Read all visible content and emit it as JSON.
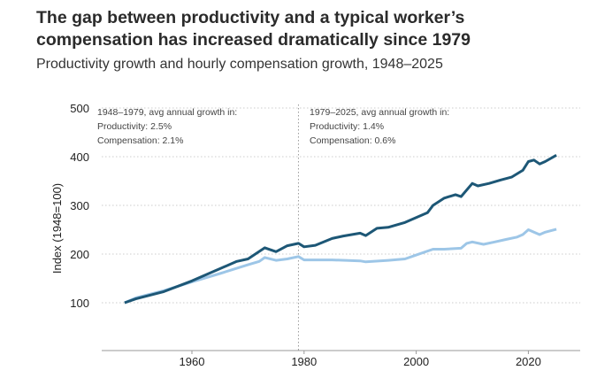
{
  "title": "The gap between productivity and a typical worker’s compensation has increased dramatically since 1979",
  "subtitle": "Productivity growth and hourly compensation growth, 1948–2025",
  "chart_data": {
    "type": "line",
    "title": "The gap between productivity and a typical worker’s compensation has increased dramatically since 1979",
    "subtitle": "Productivity growth and hourly compensation growth, 1948–2025",
    "xlabel": "",
    "ylabel": "Index (1948=100)",
    "xlim": [
      1944,
      2029
    ],
    "ylim": [
      0,
      500
    ],
    "xticks": [
      1960,
      1980,
      2000,
      2020
    ],
    "yticks": [
      100,
      200,
      300,
      400,
      500
    ],
    "grid": "horizontal dotted",
    "colors": {
      "productivity": "#1d5776",
      "compensation": "#9dc6e7"
    },
    "vline": 1979,
    "annotations": [
      {
        "lines": [
          "1948–1979, avg annual growth in:",
          "Productivity: 2.5%",
          "Compensation: 2.1%"
        ]
      },
      {
        "lines": [
          "1979–2025, avg annual growth in:",
          "Productivity: 1.4%",
          "Compensation: 0.6%"
        ]
      }
    ],
    "series": [
      {
        "key": "productivity",
        "x": [
          1948,
          1950,
          1955,
          1960,
          1965,
          1968,
          1970,
          1973,
          1975,
          1977,
          1979,
          1980,
          1982,
          1985,
          1987,
          1990,
          1991,
          1993,
          1995,
          1998,
          2000,
          2002,
          2003,
          2005,
          2007,
          2008,
          2010,
          2011,
          2013,
          2015,
          2017,
          2019,
          2020,
          2021,
          2022,
          2023,
          2025
        ],
        "y": [
          100,
          108,
          123,
          145,
          170,
          185,
          190,
          213,
          205,
          217,
          222,
          215,
          218,
          232,
          237,
          243,
          238,
          253,
          255,
          265,
          275,
          285,
          300,
          315,
          322,
          318,
          345,
          340,
          345,
          352,
          358,
          372,
          390,
          393,
          385,
          390,
          403
        ]
      },
      {
        "key": "compensation",
        "x": [
          1948,
          1950,
          1955,
          1960,
          1965,
          1970,
          1972,
          1973,
          1975,
          1977,
          1979,
          1980,
          1985,
          1990,
          1991,
          1995,
          1998,
          2000,
          2003,
          2005,
          2008,
          2009,
          2010,
          2012,
          2014,
          2016,
          2018,
          2019,
          2020,
          2021,
          2022,
          2023,
          2025
        ],
        "y": [
          100,
          110,
          125,
          143,
          160,
          178,
          185,
          193,
          187,
          190,
          195,
          188,
          188,
          186,
          184,
          187,
          190,
          198,
          210,
          210,
          212,
          222,
          225,
          220,
          225,
          230,
          235,
          240,
          250,
          245,
          240,
          245,
          251
        ]
      }
    ]
  }
}
